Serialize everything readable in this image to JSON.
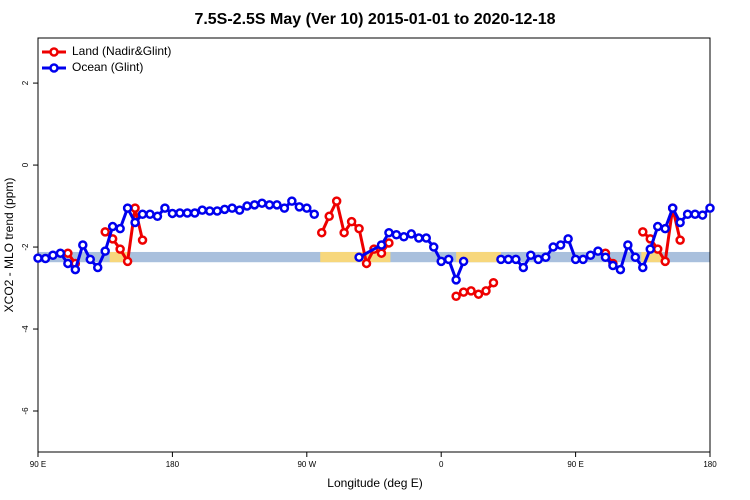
{
  "chart_data": {
    "type": "line",
    "title": "7.5S-2.5S May (Ver 10)   2015-01-01 to 2020-12-18",
    "x_label": "Longitude (deg E)",
    "y_label": "XCO2 - MLO trend (ppm)",
    "xlim": [
      90,
      540
    ],
    "ylim": [
      -7,
      3.1
    ],
    "xticks": [
      {
        "value": 90,
        "label": "90 E"
      },
      {
        "value": 180,
        "label": "180"
      },
      {
        "value": 270,
        "label": "90 W"
      },
      {
        "value": 360,
        "label": "0"
      },
      {
        "value": 450,
        "label": "90 E"
      },
      {
        "value": 540,
        "label": "180"
      }
    ],
    "yticks": [
      -6,
      -4,
      -2,
      0,
      2
    ],
    "legend": "top-left",
    "reference_bands": [
      {
        "color": "#a9c0dd",
        "x": [
          90,
          540
        ],
        "y": [
          -2.37,
          -2.12
        ]
      },
      {
        "color": "#f7d77c",
        "x": [
          138,
          150
        ],
        "y": [
          -2.37,
          -2.12
        ]
      },
      {
        "color": "#f7d77c",
        "x": [
          279,
          326
        ],
        "y": [
          -2.37,
          -2.12
        ]
      },
      {
        "color": "#f7d77c",
        "x": [
          370,
          400
        ],
        "y": [
          -2.37,
          -2.12
        ]
      },
      {
        "color": "#f7d77c",
        "x": [
          494,
          508
        ],
        "y": [
          -2.37,
          -2.12
        ]
      }
    ],
    "series": [
      {
        "name": "Land (Nadir&Glint)",
        "color": "#ee0000",
        "x": [
          110,
          115,
          125,
          135,
          140,
          145,
          150,
          155,
          160,
          200,
          280,
          285,
          290,
          295,
          300,
          305,
          310,
          315,
          320,
          325,
          350,
          370,
          375,
          380,
          385,
          390,
          395,
          430,
          470,
          475,
          485,
          495,
          500,
          505,
          510,
          515,
          520
        ],
        "values": [
          -2.15,
          -2.4,
          null,
          -1.63,
          -1.8,
          -2.05,
          -2.35,
          -1.05,
          -1.83,
          null,
          -1.65,
          -1.25,
          -0.88,
          -1.65,
          -1.38,
          -1.55,
          -2.4,
          -2.05,
          -2.15,
          -1.9,
          null,
          -3.2,
          -3.1,
          -3.07,
          -3.15,
          -3.07,
          -2.87,
          null,
          -2.15,
          -2.4,
          null,
          -1.63,
          -1.8,
          -2.05,
          -2.35,
          -1.05,
          -1.83
        ]
      },
      {
        "name": "Ocean (Glint)",
        "color": "#0000ee",
        "x": [
          90,
          95,
          100,
          105,
          110,
          115,
          120,
          125,
          130,
          135,
          140,
          145,
          150,
          155,
          160,
          165,
          170,
          175,
          180,
          185,
          190,
          195,
          200,
          205,
          210,
          215,
          220,
          225,
          230,
          235,
          240,
          245,
          250,
          255,
          260,
          265,
          270,
          275,
          290,
          305,
          320,
          325,
          330,
          335,
          340,
          345,
          350,
          355,
          360,
          365,
          370,
          375,
          385,
          400,
          405,
          410,
          415,
          420,
          425,
          430,
          435,
          440,
          445,
          450,
          455,
          460,
          465,
          470,
          475,
          480,
          485,
          490,
          495,
          500,
          505,
          510,
          515,
          520,
          525,
          530,
          535,
          540
        ],
        "values": [
          -2.27,
          -2.28,
          -2.2,
          -2.15,
          -2.4,
          -2.55,
          -1.95,
          -2.3,
          -2.5,
          -2.1,
          -1.5,
          -1.55,
          -1.05,
          -1.4,
          -1.2,
          -1.2,
          -1.25,
          -1.05,
          -1.18,
          -1.17,
          -1.17,
          -1.17,
          -1.1,
          -1.12,
          -1.12,
          -1.08,
          -1.05,
          -1.1,
          -1.0,
          -0.97,
          -0.93,
          -0.97,
          -0.97,
          -1.05,
          -0.88,
          -1.02,
          -1.05,
          -1.2,
          null,
          -2.25,
          -1.95,
          -1.65,
          -1.7,
          -1.75,
          -1.68,
          -1.78,
          -1.78,
          -2.0,
          -2.35,
          -2.3,
          -2.8,
          -2.35,
          null,
          -2.3,
          -2.3,
          -2.3,
          -2.5,
          -2.2,
          -2.3,
          -2.25,
          -2.0,
          -1.95,
          -1.8,
          -2.3,
          -2.3,
          -2.2,
          -2.1,
          -2.25,
          -2.45,
          -2.55,
          -1.95,
          -2.25,
          -2.5,
          -2.05,
          -1.5,
          -1.55,
          -1.05,
          -1.4,
          -1.2,
          -1.2,
          -1.22,
          -1.05
        ]
      }
    ]
  }
}
